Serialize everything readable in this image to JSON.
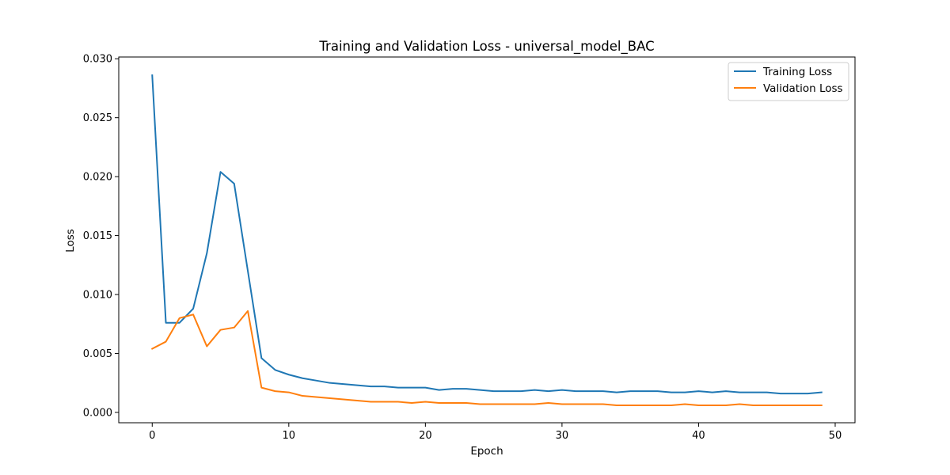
{
  "chart_data": {
    "type": "line",
    "title": "Training and Validation Loss - universal_model_BAC",
    "xlabel": "Epoch",
    "ylabel": "Loss",
    "xlim": [
      -2.45,
      51.45
    ],
    "ylim": [
      -0.00088,
      0.03015
    ],
    "xticks": [
      0,
      10,
      20,
      30,
      40,
      50
    ],
    "xtick_labels": [
      "0",
      "10",
      "20",
      "30",
      "40",
      "50"
    ],
    "yticks": [
      0.0,
      0.005,
      0.01,
      0.015,
      0.02,
      0.025,
      0.03
    ],
    "ytick_labels": [
      "0.000",
      "0.005",
      "0.010",
      "0.015",
      "0.020",
      "0.025",
      "0.030"
    ],
    "grid": false,
    "legend_position": "upper-right",
    "x": [
      0,
      1,
      2,
      3,
      4,
      5,
      6,
      7,
      8,
      9,
      10,
      11,
      12,
      13,
      14,
      15,
      16,
      17,
      18,
      19,
      20,
      21,
      22,
      23,
      24,
      25,
      26,
      27,
      28,
      29,
      30,
      31,
      32,
      33,
      34,
      35,
      36,
      37,
      38,
      39,
      40,
      41,
      42,
      43,
      44,
      45,
      46,
      47,
      48,
      49
    ],
    "series": [
      {
        "name": "Training Loss",
        "color": "#1f77b4",
        "values": [
          0.0286,
          0.0076,
          0.0076,
          0.0088,
          0.0135,
          0.0204,
          0.0194,
          0.012,
          0.0046,
          0.0036,
          0.0032,
          0.0029,
          0.0027,
          0.0025,
          0.0024,
          0.0023,
          0.0022,
          0.0022,
          0.0021,
          0.0021,
          0.0021,
          0.0019,
          0.002,
          0.002,
          0.0019,
          0.0018,
          0.0018,
          0.0018,
          0.0019,
          0.0018,
          0.0019,
          0.0018,
          0.0018,
          0.0018,
          0.0017,
          0.0018,
          0.0018,
          0.0018,
          0.0017,
          0.0017,
          0.0018,
          0.0017,
          0.0018,
          0.0017,
          0.0017,
          0.0017,
          0.0016,
          0.0016,
          0.0016,
          0.0017
        ]
      },
      {
        "name": "Validation Loss",
        "color": "#ff7f0e",
        "values": [
          0.0054,
          0.006,
          0.008,
          0.0083,
          0.0056,
          0.007,
          0.0072,
          0.0086,
          0.0021,
          0.0018,
          0.0017,
          0.0014,
          0.0013,
          0.0012,
          0.0011,
          0.001,
          0.0009,
          0.0009,
          0.0009,
          0.0008,
          0.0009,
          0.0008,
          0.0008,
          0.0008,
          0.0007,
          0.0007,
          0.0007,
          0.0007,
          0.0007,
          0.0008,
          0.0007,
          0.0007,
          0.0007,
          0.0007,
          0.0006,
          0.0006,
          0.0006,
          0.0006,
          0.0006,
          0.0007,
          0.0006,
          0.0006,
          0.0006,
          0.0007,
          0.0006,
          0.0006,
          0.0006,
          0.0006,
          0.0006,
          0.0006
        ]
      }
    ]
  }
}
